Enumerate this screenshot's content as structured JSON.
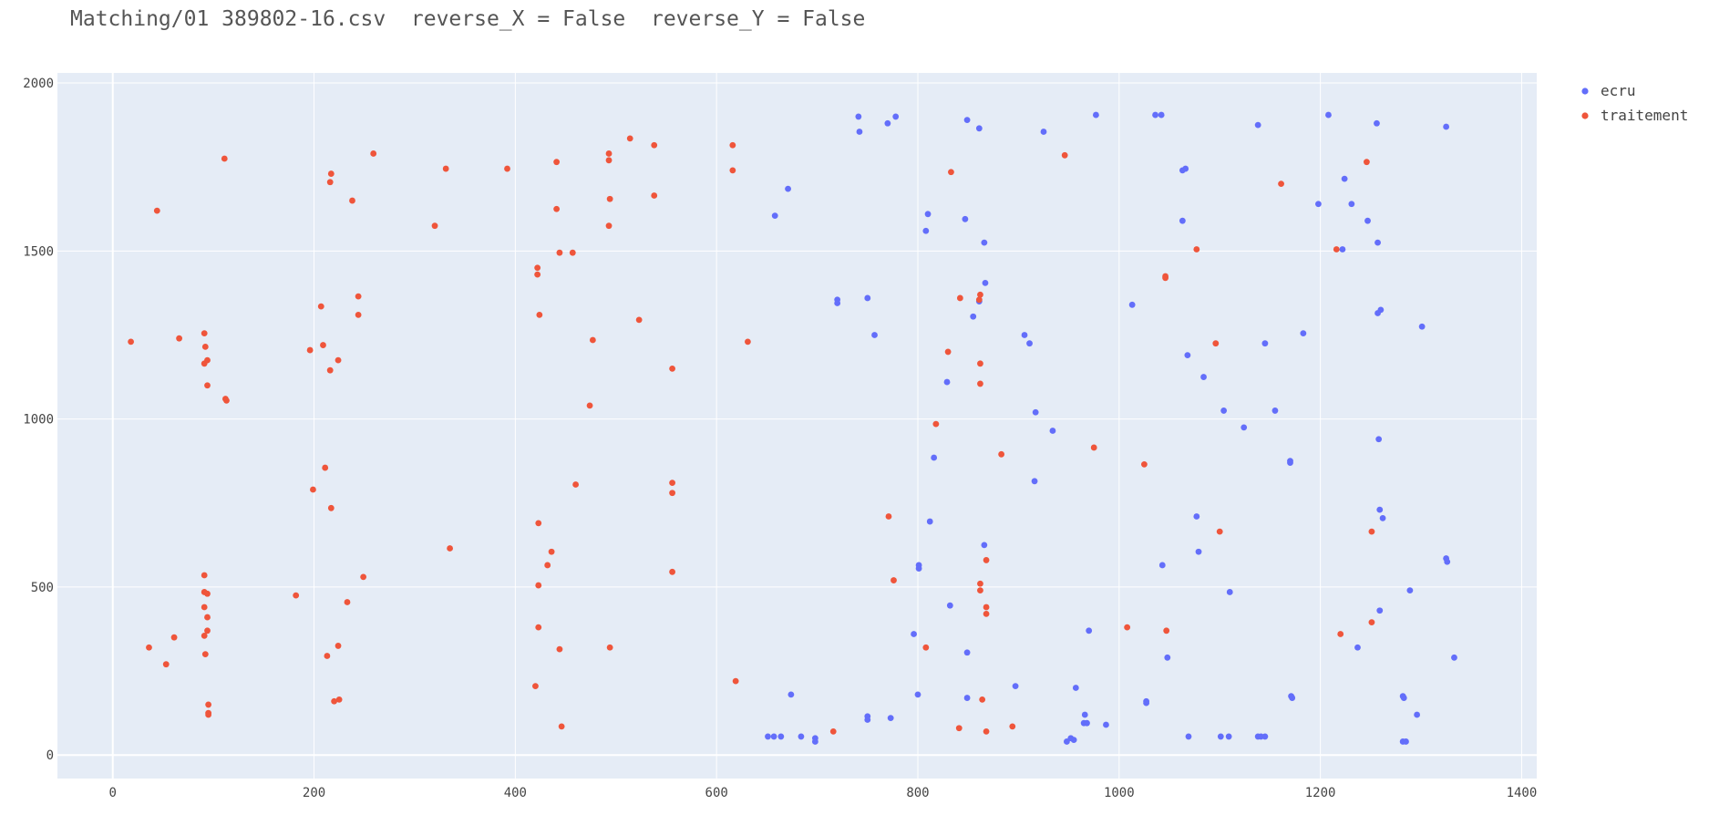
{
  "chart_data": {
    "type": "scatter",
    "title": "Matching/01 389802-16.csv  reverse_X = False  reverse_Y = False",
    "xlabel": "",
    "ylabel": "",
    "xlim": [
      -55,
      1415
    ],
    "ylim": [
      -70,
      2030
    ],
    "xticks": [
      0,
      200,
      400,
      600,
      800,
      1000,
      1200,
      1400
    ],
    "yticks": [
      0,
      500,
      1000,
      1500,
      2000
    ],
    "grid": true,
    "legend_position": "top-right",
    "series": [
      {
        "name": "ecru",
        "color": "#636efa",
        "points": [
          [
            741,
            1900
          ],
          [
            742,
            1855
          ],
          [
            770,
            1880
          ],
          [
            778,
            1900
          ],
          [
            849,
            1890
          ],
          [
            861,
            1865
          ],
          [
            925,
            1855
          ],
          [
            977,
            1905
          ],
          [
            1036,
            1905
          ],
          [
            1042,
            1905
          ],
          [
            1138,
            1875
          ],
          [
            1208,
            1905
          ],
          [
            1256,
            1880
          ],
          [
            1325,
            1870
          ],
          [
            658,
            1605
          ],
          [
            671,
            1685
          ],
          [
            810,
            1610
          ],
          [
            847,
            1595
          ],
          [
            808,
            1560
          ],
          [
            866,
            1525
          ],
          [
            1063,
            1740
          ],
          [
            1066,
            1745
          ],
          [
            1063,
            1590
          ],
          [
            1224,
            1715
          ],
          [
            1231,
            1640
          ],
          [
            1198,
            1640
          ],
          [
            1247,
            1590
          ],
          [
            1257,
            1525
          ],
          [
            1222,
            1505
          ],
          [
            720,
            1355
          ],
          [
            720,
            1345
          ],
          [
            750,
            1360
          ],
          [
            757,
            1250
          ],
          [
            867,
            1405
          ],
          [
            861,
            1350
          ],
          [
            855,
            1305
          ],
          [
            906,
            1250
          ],
          [
            911,
            1225
          ],
          [
            1013,
            1340
          ],
          [
            1068,
            1190
          ],
          [
            1145,
            1225
          ],
          [
            1183,
            1255
          ],
          [
            1257,
            1315
          ],
          [
            1260,
            1325
          ],
          [
            1301,
            1275
          ],
          [
            829,
            1110
          ],
          [
            816,
            885
          ],
          [
            917,
            1020
          ],
          [
            934,
            965
          ],
          [
            916,
            815
          ],
          [
            1084,
            1125
          ],
          [
            1104,
            1025
          ],
          [
            1124,
            975
          ],
          [
            1155,
            1025
          ],
          [
            1170,
            870
          ],
          [
            1170,
            875
          ],
          [
            1258,
            940
          ],
          [
            812,
            695
          ],
          [
            801,
            565
          ],
          [
            801,
            555
          ],
          [
            866,
            625
          ],
          [
            832,
            445
          ],
          [
            796,
            360
          ],
          [
            1077,
            710
          ],
          [
            1043,
            565
          ],
          [
            1079,
            605
          ],
          [
            1110,
            485
          ],
          [
            1259,
            730
          ],
          [
            1262,
            705
          ],
          [
            1259,
            430
          ],
          [
            1325,
            585
          ],
          [
            1326,
            575
          ],
          [
            1289,
            490
          ],
          [
            849,
            305
          ],
          [
            800,
            180
          ],
          [
            849,
            170
          ],
          [
            897,
            205
          ],
          [
            957,
            200
          ],
          [
            970,
            370
          ],
          [
            966,
            120
          ],
          [
            965,
            95
          ],
          [
            968,
            95
          ],
          [
            987,
            90
          ],
          [
            1048,
            290
          ],
          [
            1027,
            160
          ],
          [
            1027,
            155
          ],
          [
            1237,
            320
          ],
          [
            1333,
            290
          ],
          [
            1171,
            175
          ],
          [
            1172,
            170
          ],
          [
            1282,
            175
          ],
          [
            1283,
            170
          ],
          [
            1296,
            120
          ],
          [
            1282,
            40
          ],
          [
            1285,
            40
          ],
          [
            674,
            180
          ],
          [
            651,
            55
          ],
          [
            657,
            55
          ],
          [
            664,
            55
          ],
          [
            684,
            55
          ],
          [
            698,
            50
          ],
          [
            698,
            40
          ],
          [
            750,
            115
          ],
          [
            750,
            105
          ],
          [
            773,
            110
          ],
          [
            948,
            40
          ],
          [
            952,
            50
          ],
          [
            955,
            45
          ],
          [
            1069,
            55
          ],
          [
            1101,
            55
          ],
          [
            1109,
            55
          ],
          [
            1138,
            55
          ],
          [
            1141,
            55
          ],
          [
            1145,
            55
          ]
        ]
      },
      {
        "name": "traitement",
        "color": "#ef553b",
        "points": [
          [
            44,
            1620
          ],
          [
            111,
            1775
          ],
          [
            217,
            1730
          ],
          [
            216,
            1705
          ],
          [
            238,
            1650
          ],
          [
            259,
            1790
          ],
          [
            320,
            1575
          ],
          [
            331,
            1745
          ],
          [
            392,
            1745
          ],
          [
            441,
            1765
          ],
          [
            441,
            1625
          ],
          [
            493,
            1790
          ],
          [
            493,
            1770
          ],
          [
            494,
            1655
          ],
          [
            493,
            1575
          ],
          [
            514,
            1835
          ],
          [
            538,
            1815
          ],
          [
            538,
            1665
          ],
          [
            616,
            1815
          ],
          [
            616,
            1740
          ],
          [
            833,
            1735
          ],
          [
            946,
            1785
          ],
          [
            1161,
            1700
          ],
          [
            1246,
            1765
          ],
          [
            18,
            1230
          ],
          [
            66,
            1240
          ],
          [
            91,
            1255
          ],
          [
            92,
            1215
          ],
          [
            91,
            1165
          ],
          [
            94,
            1175
          ],
          [
            94,
            1100
          ],
          [
            113,
            1055
          ],
          [
            112,
            1060
          ],
          [
            196,
            1205
          ],
          [
            207,
            1335
          ],
          [
            209,
            1220
          ],
          [
            216,
            1145
          ],
          [
            224,
            1175
          ],
          [
            244,
            1365
          ],
          [
            244,
            1310
          ],
          [
            422,
            1450
          ],
          [
            422,
            1430
          ],
          [
            424,
            1310
          ],
          [
            444,
            1495
          ],
          [
            457,
            1495
          ],
          [
            477,
            1235
          ],
          [
            523,
            1295
          ],
          [
            556,
            1150
          ],
          [
            631,
            1230
          ],
          [
            842,
            1360
          ],
          [
            830,
            1200
          ],
          [
            862,
            1370
          ],
          [
            861,
            1355
          ],
          [
            862,
            1165
          ],
          [
            862,
            1105
          ],
          [
            1046,
            1425
          ],
          [
            1046,
            1420
          ],
          [
            1077,
            1505
          ],
          [
            1096,
            1225
          ],
          [
            1216,
            1505
          ],
          [
            199,
            790
          ],
          [
            211,
            855
          ],
          [
            217,
            735
          ],
          [
            474,
            1040
          ],
          [
            460,
            805
          ],
          [
            556,
            810
          ],
          [
            556,
            780
          ],
          [
            771,
            710
          ],
          [
            818,
            985
          ],
          [
            883,
            895
          ],
          [
            975,
            915
          ],
          [
            1025,
            865
          ],
          [
            1100,
            665
          ],
          [
            1251,
            665
          ],
          [
            91,
            535
          ],
          [
            91,
            485
          ],
          [
            94,
            480
          ],
          [
            91,
            440
          ],
          [
            94,
            410
          ],
          [
            91,
            355
          ],
          [
            94,
            370
          ],
          [
            92,
            300
          ],
          [
            36,
            320
          ],
          [
            53,
            270
          ],
          [
            61,
            350
          ],
          [
            95,
            150
          ],
          [
            95,
            125
          ],
          [
            95,
            120
          ],
          [
            182,
            475
          ],
          [
            213,
            295
          ],
          [
            220,
            160
          ],
          [
            224,
            325
          ],
          [
            225,
            165
          ],
          [
            233,
            455
          ],
          [
            249,
            530
          ],
          [
            335,
            615
          ],
          [
            420,
            205
          ],
          [
            423,
            690
          ],
          [
            423,
            505
          ],
          [
            423,
            380
          ],
          [
            432,
            565
          ],
          [
            436,
            605
          ],
          [
            444,
            315
          ],
          [
            446,
            85
          ],
          [
            494,
            320
          ],
          [
            556,
            545
          ],
          [
            619,
            220
          ],
          [
            716,
            70
          ],
          [
            776,
            520
          ],
          [
            808,
            320
          ],
          [
            841,
            80
          ],
          [
            864,
            165
          ],
          [
            862,
            510
          ],
          [
            862,
            490
          ],
          [
            868,
            580
          ],
          [
            868,
            440
          ],
          [
            868,
            420
          ],
          [
            868,
            70
          ],
          [
            894,
            85
          ],
          [
            1008,
            380
          ],
          [
            1047,
            370
          ],
          [
            1220,
            360
          ],
          [
            1251,
            395
          ]
        ]
      }
    ]
  }
}
